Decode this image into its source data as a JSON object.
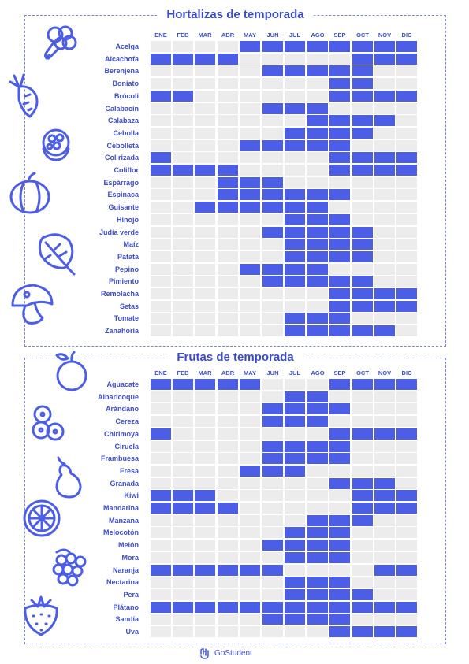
{
  "vegetables": {
    "title": "Hortalizas de temporada",
    "months": [
      "ENE",
      "FEB",
      "MAR",
      "ABR",
      "MAY",
      "JUN",
      "JUL",
      "AGO",
      "SEP",
      "OCT",
      "NOV",
      "DIC"
    ],
    "items": [
      {
        "name": "Acelga",
        "months": [
          5,
          6,
          7,
          8,
          9,
          10,
          11,
          12
        ]
      },
      {
        "name": "Alcachofa",
        "months": [
          1,
          2,
          3,
          4,
          10,
          11,
          12
        ]
      },
      {
        "name": "Berenjena",
        "months": [
          6,
          7,
          8,
          9,
          10
        ]
      },
      {
        "name": "Boniato",
        "months": [
          9,
          10
        ]
      },
      {
        "name": "Brócoli",
        "months": [
          1,
          2,
          9,
          10,
          11,
          12
        ]
      },
      {
        "name": "Calabacín",
        "months": [
          6,
          7,
          8
        ]
      },
      {
        "name": "Calabaza",
        "months": [
          8,
          9,
          10,
          11
        ]
      },
      {
        "name": "Cebolla",
        "months": [
          7,
          8,
          9,
          10
        ]
      },
      {
        "name": "Cebolleta",
        "months": [
          5,
          6,
          7,
          8,
          9
        ]
      },
      {
        "name": "Col rizada",
        "months": [
          1,
          9,
          10,
          11,
          12
        ]
      },
      {
        "name": "Coliflor",
        "months": [
          1,
          2,
          3,
          4,
          9,
          10,
          11,
          12
        ]
      },
      {
        "name": "Espárrago",
        "months": [
          4,
          5,
          6
        ]
      },
      {
        "name": "Espinaca",
        "months": [
          4,
          5,
          6,
          7,
          8,
          9
        ]
      },
      {
        "name": "Guisante",
        "months": [
          3,
          4,
          5,
          6,
          7,
          8
        ]
      },
      {
        "name": "Hinojo",
        "months": [
          7,
          8,
          9
        ]
      },
      {
        "name": "Judía verde",
        "months": [
          6,
          7,
          8,
          9,
          10
        ]
      },
      {
        "name": "Maíz",
        "months": [
          7,
          8,
          9,
          10
        ]
      },
      {
        "name": "Patata",
        "months": [
          7,
          8,
          9,
          10
        ]
      },
      {
        "name": "Pepino",
        "months": [
          5,
          6,
          7,
          8
        ]
      },
      {
        "name": "Pimiento",
        "months": [
          6,
          7,
          8,
          9,
          10
        ]
      },
      {
        "name": "Remolacha",
        "months": [
          9,
          10,
          11,
          12
        ]
      },
      {
        "name": "Setas",
        "months": [
          9,
          10,
          11,
          12
        ]
      },
      {
        "name": "Tomate",
        "months": [
          7,
          8,
          9
        ]
      },
      {
        "name": "Zanahoria",
        "months": [
          7,
          8,
          9,
          10,
          11
        ]
      }
    ]
  },
  "fruits": {
    "title": "Frutas de temporada",
    "months": [
      "ENE",
      "FEB",
      "MAR",
      "ABR",
      "MAY",
      "JUN",
      "JUL",
      "AGO",
      "SEP",
      "OCT",
      "NOV",
      "DIC"
    ],
    "items": [
      {
        "name": "Aguacate",
        "months": [
          1,
          2,
          3,
          4,
          5,
          9,
          10,
          11,
          12
        ]
      },
      {
        "name": "Albaricoque",
        "months": [
          7,
          8
        ]
      },
      {
        "name": "Arándano",
        "months": [
          6,
          7,
          8,
          9
        ]
      },
      {
        "name": "Cereza",
        "months": [
          6,
          7,
          8
        ]
      },
      {
        "name": "Chirimoya",
        "months": [
          1,
          9,
          10,
          11,
          12
        ]
      },
      {
        "name": "Ciruela",
        "months": [
          6,
          7,
          8,
          9
        ]
      },
      {
        "name": "Frambuesa",
        "months": [
          6,
          7,
          8,
          9
        ]
      },
      {
        "name": "Fresa",
        "months": [
          5,
          6,
          7
        ]
      },
      {
        "name": "Granada",
        "months": [
          9,
          10,
          11
        ]
      },
      {
        "name": "Kiwi",
        "months": [
          1,
          2,
          3,
          10,
          11,
          12
        ]
      },
      {
        "name": "Mandarina",
        "months": [
          1,
          2,
          3,
          4,
          10,
          11,
          12
        ]
      },
      {
        "name": "Manzana",
        "months": [
          8,
          9,
          10
        ]
      },
      {
        "name": "Melocotón",
        "months": [
          7,
          8,
          9
        ]
      },
      {
        "name": "Melón",
        "months": [
          6,
          7,
          8,
          9
        ]
      },
      {
        "name": "Mora",
        "months": [
          7,
          8,
          9
        ]
      },
      {
        "name": "Naranja",
        "months": [
          1,
          2,
          3,
          4,
          5,
          6,
          11,
          12
        ]
      },
      {
        "name": "Nectarina",
        "months": [
          7,
          8,
          9
        ]
      },
      {
        "name": "Pera",
        "months": [
          7,
          8,
          9,
          10
        ]
      },
      {
        "name": "Plátano",
        "months": [
          1,
          2,
          3,
          4,
          5,
          6,
          7,
          8,
          9,
          10,
          11,
          12
        ]
      },
      {
        "name": "Sandía",
        "months": [
          6,
          7,
          8,
          9
        ]
      },
      {
        "name": "Uva",
        "months": [
          9,
          10,
          11,
          12
        ]
      }
    ]
  },
  "icons": {
    "vegetables": [
      "broccoli-icon",
      "carrot-icon",
      "cauliflower-icon",
      "pumpkin-icon",
      "spinach-leaf-icon",
      "mushroom-icon"
    ],
    "fruits": [
      "apple-icon",
      "blueberries-icon",
      "pear-icon",
      "orange-slice-icon",
      "blackberry-icon",
      "strawberry-icon"
    ]
  },
  "colors": {
    "accent": "#4c5ee6",
    "empty_cell": "#ececec",
    "text": "#3d4ec9"
  },
  "footer": {
    "brand": "GoStudent"
  }
}
